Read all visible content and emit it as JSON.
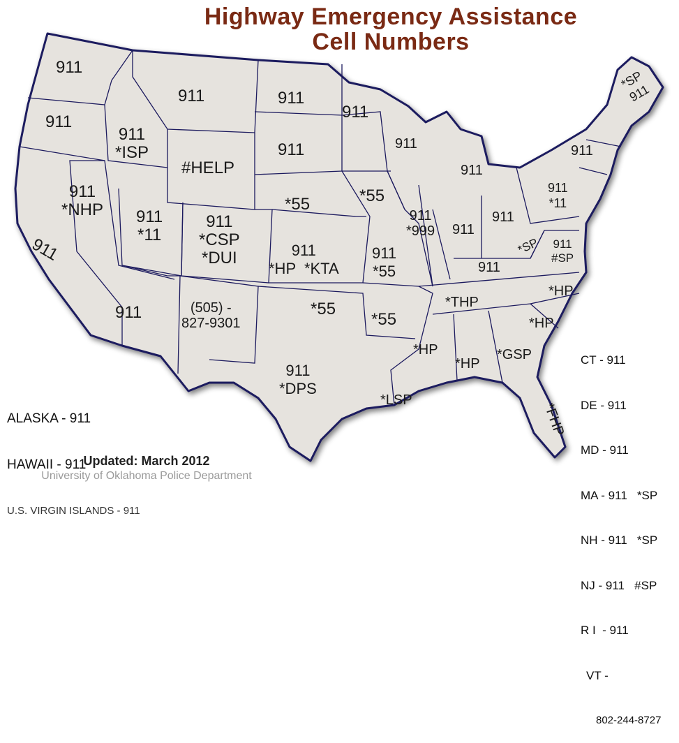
{
  "title": {
    "line1": "Highway Emergency Assistance",
    "line2": "Cell Numbers"
  },
  "colors": {
    "land": "#e6e3de",
    "border": "#1c1a5e",
    "title": "#7a2a14",
    "shadow": "#8a86c0"
  },
  "states": [
    {
      "id": "WA",
      "text": "911"
    },
    {
      "id": "OR",
      "text": "911"
    },
    {
      "id": "CA",
      "text": "911"
    },
    {
      "id": "ID",
      "text": "911\n*ISP"
    },
    {
      "id": "NV",
      "text": "911\n*NHP"
    },
    {
      "id": "MT",
      "text": "911"
    },
    {
      "id": "WY",
      "text": "#HELP"
    },
    {
      "id": "UT",
      "text": "911\n*11"
    },
    {
      "id": "CO",
      "text": "911\n*CSP\n*DUI"
    },
    {
      "id": "AZ",
      "text": "911"
    },
    {
      "id": "NM",
      "text": "(505) -\n827-9301"
    },
    {
      "id": "ND",
      "text": "911"
    },
    {
      "id": "SD",
      "text": "911"
    },
    {
      "id": "NE",
      "text": "*55"
    },
    {
      "id": "KS",
      "text": "911\n*HP  *KTA"
    },
    {
      "id": "OK",
      "text": "*55"
    },
    {
      "id": "TX",
      "text": "911\n*DPS"
    },
    {
      "id": "MN",
      "text": "911"
    },
    {
      "id": "IA",
      "text": "*55"
    },
    {
      "id": "MO",
      "text": "911\n*55"
    },
    {
      "id": "AR",
      "text": "*55"
    },
    {
      "id": "LA",
      "text": "*LSP"
    },
    {
      "id": "WI",
      "text": "911"
    },
    {
      "id": "IL",
      "text": "911\n*999"
    },
    {
      "id": "MI",
      "text": "911"
    },
    {
      "id": "IN",
      "text": "911"
    },
    {
      "id": "OH",
      "text": "911"
    },
    {
      "id": "KY",
      "text": "911"
    },
    {
      "id": "TN",
      "text": "*THP"
    },
    {
      "id": "MS",
      "text": "*HP"
    },
    {
      "id": "AL",
      "text": "*HP"
    },
    {
      "id": "GA",
      "text": "*GSP"
    },
    {
      "id": "FL",
      "text": "*FHP"
    },
    {
      "id": "SC",
      "text": "*HP"
    },
    {
      "id": "NC",
      "text": "*HP"
    },
    {
      "id": "VA",
      "text": "911\n#SP"
    },
    {
      "id": "WV",
      "text": "*SP"
    },
    {
      "id": "PA",
      "text": "911\n*11"
    },
    {
      "id": "NY",
      "text": "911"
    },
    {
      "id": "ME",
      "text": "*SP\n911"
    }
  ],
  "legend_left": [
    "ALASKA - 911",
    "HAWAII - 911",
    "U.S. VIRGIN ISLANDS - 911"
  ],
  "legend_right": [
    "CT - 911",
    "DE - 911",
    "MD - 911",
    "MA - 911   *SP",
    "NH - 911   *SP",
    "NJ - 911   #SP",
    "R I  - 911",
    "VT -",
    "802-244-8727"
  ],
  "footer": {
    "updated": "Updated: March 2012",
    "source": "University of Oklahoma Police Department"
  }
}
